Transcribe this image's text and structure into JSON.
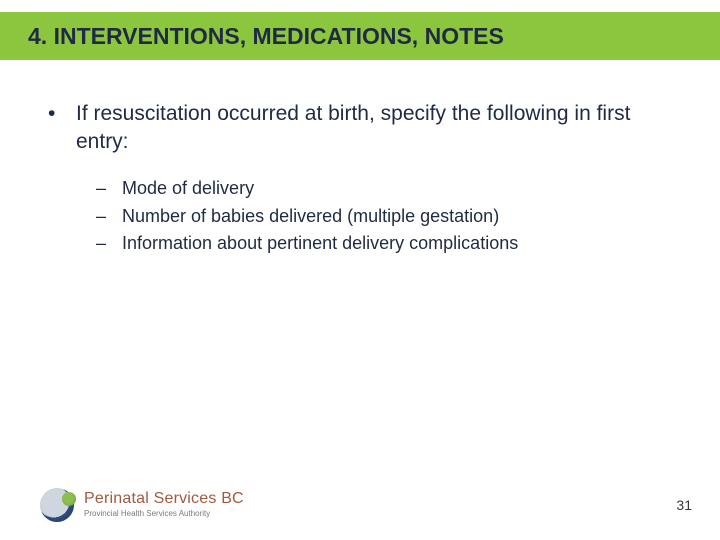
{
  "colors": {
    "title_bar_bg": "#8cc63f",
    "title_text": "#1f2a44",
    "body_text": "#1f2a44",
    "brand_main": "#a15a3c",
    "brand_sub": "#7a7a7a",
    "page_bg": "#ffffff"
  },
  "title": "4. INTERVENTIONS, MEDICATIONS, NOTES",
  "main_bullet": "If resuscitation occurred at birth, specify the following in first entry:",
  "sub_bullets": [
    "Mode of delivery",
    "Number of babies delivered (multiple gestation)",
    "Information about pertinent delivery complications"
  ],
  "brand": {
    "main": "Perinatal Services BC",
    "sub": "Provincial Health Services Authority"
  },
  "page_number": "31"
}
